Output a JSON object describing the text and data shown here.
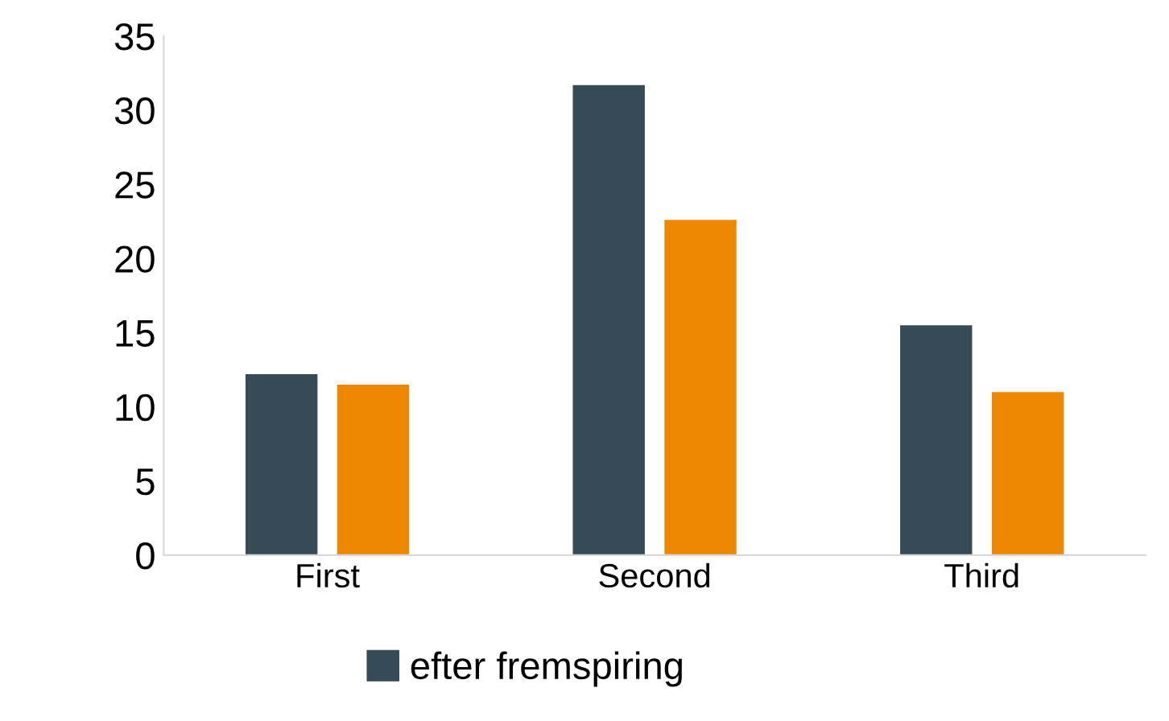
{
  "chart_data": {
    "type": "bar",
    "categories": [
      "First",
      "Second",
      "Third"
    ],
    "series": [
      {
        "name": "efter fremspiring",
        "color": "#364b55",
        "values": [
          12.2,
          31.7,
          15.5
        ]
      },
      {
        "color": "#ee8700",
        "values": [
          11.5,
          22.6,
          11.0
        ]
      }
    ],
    "ylim": [
      0,
      35
    ],
    "yticks": [
      0,
      5,
      10,
      15,
      20,
      25,
      30,
      35
    ],
    "grid": false,
    "legend": "bottom"
  }
}
